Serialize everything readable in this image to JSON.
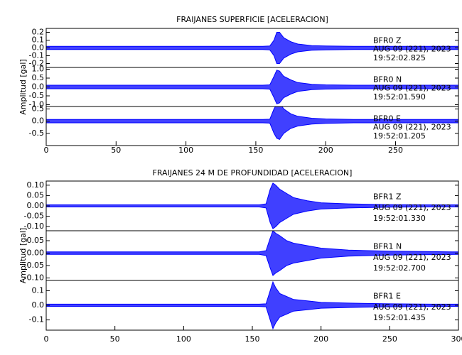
{
  "chart_data": [
    {
      "type": "area",
      "title": "FRAIJANES SUPERFICIE [ACELERACION]",
      "y_label": "Amplitud [gal]",
      "xlim": [
        0,
        295
      ],
      "xticks": [
        0,
        50,
        100,
        150,
        200,
        250
      ],
      "color": "#0000ff",
      "x": [
        0,
        20,
        40,
        60,
        80,
        100,
        120,
        140,
        155,
        160,
        163,
        165,
        167,
        170,
        175,
        180,
        190,
        200,
        220,
        250,
        280,
        295
      ],
      "panels": [
        {
          "ylim": [
            -0.25,
            0.25
          ],
          "yticks": [
            -0.2,
            -0.1,
            {
              "value": 0,
              "label": "0.0"
            },
            0.1,
            0.2
          ],
          "values": [
            0.02,
            0.02,
            0.02,
            0.02,
            0.02,
            0.02,
            0.02,
            0.02,
            0.02,
            0.025,
            0.1,
            0.2,
            0.2,
            0.13,
            0.08,
            0.05,
            0.03,
            0.025,
            0.02,
            0.02,
            0.02,
            0.02
          ],
          "station": "BFR0  Z",
          "date": "AUG 09 (221), 2023",
          "time": "19:52:02.825"
        },
        {
          "ylim": [
            -1.1,
            1.1
          ],
          "yticks": [
            {
              "value": -1,
              "label": "-1.0"
            },
            -0.5,
            {
              "value": 0,
              "label": "0.0"
            },
            0.5,
            {
              "value": 1,
              "label": "1.0"
            }
          ],
          "values": [
            0.1,
            0.1,
            0.1,
            0.1,
            0.1,
            0.1,
            0.1,
            0.1,
            0.1,
            0.12,
            0.6,
            0.95,
            0.9,
            0.6,
            0.4,
            0.25,
            0.15,
            0.12,
            0.1,
            0.1,
            0.1,
            0.1
          ],
          "station": "BFR0  N",
          "date": "AUG 09 (221), 2023",
          "time": "19:52:01.590"
        },
        {
          "ylim": [
            -1,
            0.6
          ],
          "yticks": [
            -0.5,
            {
              "value": 0,
              "label": "0.0"
            },
            0.5
          ],
          "values": [
            0.07,
            0.07,
            0.07,
            0.07,
            0.07,
            0.07,
            0.07,
            0.07,
            0.07,
            0.08,
            0.5,
            0.7,
            0.75,
            0.5,
            0.3,
            0.2,
            0.12,
            0.09,
            0.07,
            0.07,
            0.07,
            0.07
          ],
          "station": "BFR0  E",
          "date": "AUG 09 (221), 2023",
          "time": "19:52:01.205"
        }
      ]
    },
    {
      "type": "area",
      "title": "FRAIJANES 24 M DE PROFUNDIDAD [ACELERACION]",
      "y_label": "Amplitud [gal]",
      "xlim": [
        0,
        300
      ],
      "xticks": [
        0,
        50,
        100,
        150,
        200,
        250,
        300
      ],
      "color": "#0000ff",
      "x": [
        0,
        20,
        40,
        60,
        80,
        100,
        120,
        140,
        155,
        160,
        163,
        165,
        167,
        170,
        175,
        180,
        190,
        200,
        220,
        250,
        280,
        300
      ],
      "panels": [
        {
          "ylim": [
            -0.12,
            0.12
          ],
          "yticks": [
            {
              "value": -0.1,
              "label": "-0.10"
            },
            -0.05,
            {
              "value": 0,
              "label": "0.00"
            },
            0.05,
            {
              "value": 0.1,
              "label": "0.10"
            }
          ],
          "values": [
            0.005,
            0.005,
            0.005,
            0.005,
            0.005,
            0.005,
            0.005,
            0.005,
            0.005,
            0.01,
            0.08,
            0.11,
            0.1,
            0.08,
            0.06,
            0.04,
            0.025,
            0.015,
            0.01,
            0.006,
            0.005,
            0.005
          ],
          "station": "BFR1  Z",
          "date": "AUG 09 (221), 2023",
          "time": "19:52:01.330"
        },
        {
          "ylim": [
            -0.11,
            0.09
          ],
          "yticks": [
            {
              "value": -0.1,
              "label": "-0.10"
            },
            -0.05,
            {
              "value": 0,
              "label": "0.00"
            },
            0.05
          ],
          "values": [
            0.005,
            0.005,
            0.005,
            0.005,
            0.005,
            0.005,
            0.005,
            0.005,
            0.005,
            0.01,
            0.06,
            0.09,
            0.08,
            0.07,
            0.05,
            0.04,
            0.03,
            0.02,
            0.012,
            0.008,
            0.006,
            0.005
          ],
          "station": "BFR1  N",
          "date": "AUG 09 (221), 2023",
          "time": "19:52:02.700"
        },
        {
          "ylim": [
            -0.17,
            0.17
          ],
          "yticks": [
            -0.1,
            {
              "value": 0,
              "label": "0.0"
            },
            0.1
          ],
          "values": [
            0.008,
            0.008,
            0.008,
            0.008,
            0.008,
            0.008,
            0.008,
            0.008,
            0.008,
            0.01,
            0.1,
            0.16,
            0.12,
            0.08,
            0.06,
            0.04,
            0.03,
            0.02,
            0.015,
            0.01,
            0.008,
            0.008
          ],
          "station": "BFR1  E",
          "date": "AUG 09 (221), 2023",
          "time": "19:52:01.435"
        }
      ]
    }
  ]
}
